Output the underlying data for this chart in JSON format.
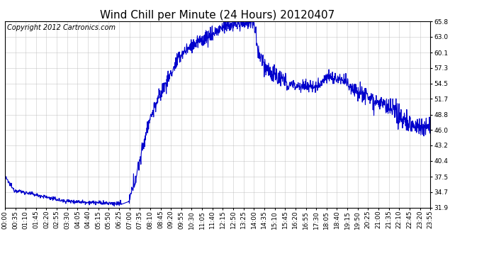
{
  "title": "Wind Chill per Minute (24 Hours) 20120407",
  "copyright_text": "Copyright 2012 Cartronics.com",
  "line_color": "#0000cc",
  "background_color": "#ffffff",
  "grid_color": "#bbbbbb",
  "yticks": [
    31.9,
    34.7,
    37.5,
    40.4,
    43.2,
    46.0,
    48.8,
    51.7,
    54.5,
    57.3,
    60.1,
    63.0,
    65.8
  ],
  "ymin": 31.9,
  "ymax": 65.8,
  "xtick_labels": [
    "00:00",
    "00:35",
    "01:10",
    "01:45",
    "02:20",
    "02:55",
    "03:30",
    "04:05",
    "04:40",
    "05:15",
    "05:50",
    "06:25",
    "07:00",
    "07:35",
    "08:10",
    "08:45",
    "09:20",
    "09:55",
    "10:30",
    "11:05",
    "11:40",
    "12:15",
    "12:50",
    "13:25",
    "14:00",
    "14:35",
    "15:10",
    "15:45",
    "16:20",
    "16:55",
    "17:30",
    "18:05",
    "18:40",
    "19:15",
    "19:50",
    "20:25",
    "21:00",
    "21:35",
    "22:10",
    "22:45",
    "23:20",
    "23:55"
  ],
  "title_fontsize": 11,
  "tick_fontsize": 6.5,
  "copyright_fontsize": 7,
  "line_width": 0.8
}
